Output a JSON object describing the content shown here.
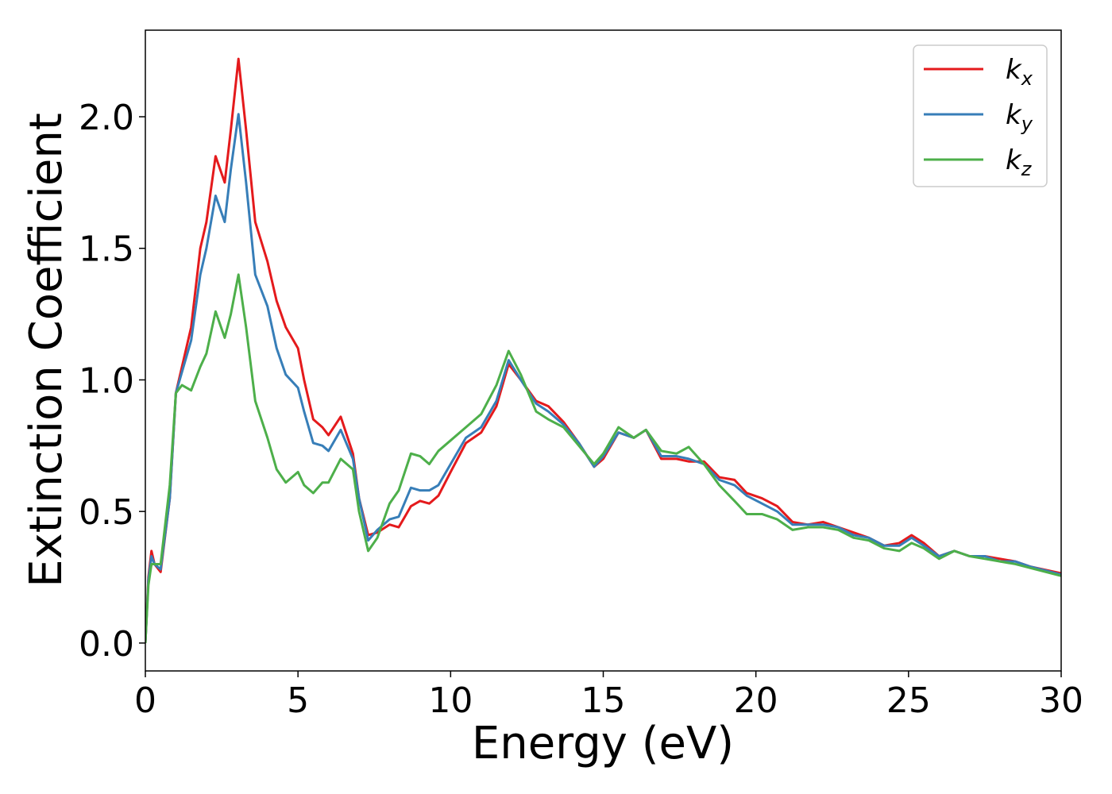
{
  "chart_data": {
    "type": "line",
    "xlabel": "Energy (eV)",
    "ylabel": "Extinction Coefficient",
    "x": [
      0,
      0.1,
      0.2,
      0.3,
      0.5,
      0.8,
      1.0,
      1.2,
      1.5,
      1.8,
      2.0,
      2.3,
      2.6,
      2.8,
      3.05,
      3.3,
      3.6,
      4.0,
      4.3,
      4.6,
      5.0,
      5.2,
      5.5,
      5.8,
      6.0,
      6.4,
      6.8,
      7.0,
      7.3,
      7.6,
      8.0,
      8.3,
      8.7,
      9.0,
      9.3,
      9.6,
      10.0,
      10.5,
      11.0,
      11.5,
      11.9,
      12.3,
      12.8,
      13.2,
      13.7,
      14.2,
      14.7,
      15.0,
      15.5,
      16.0,
      16.4,
      16.9,
      17.4,
      17.8,
      18.3,
      18.8,
      19.3,
      19.7,
      20.2,
      20.7,
      21.2,
      21.7,
      22.2,
      22.7,
      23.2,
      23.7,
      24.2,
      24.7,
      25.1,
      25.5,
      26.0,
      26.5,
      27.0,
      27.5,
      28.0,
      28.5,
      29.0,
      30.0
    ],
    "series": [
      {
        "name": "k_x",
        "color": "#e41a1c",
        "values": [
          0,
          0.25,
          0.35,
          0.3,
          0.27,
          0.55,
          0.95,
          1.05,
          1.2,
          1.5,
          1.6,
          1.85,
          1.75,
          1.95,
          2.22,
          1.95,
          1.6,
          1.45,
          1.3,
          1.2,
          1.12,
          1.0,
          0.85,
          0.82,
          0.79,
          0.86,
          0.72,
          0.55,
          0.41,
          0.42,
          0.45,
          0.44,
          0.52,
          0.54,
          0.53,
          0.56,
          0.65,
          0.76,
          0.8,
          0.9,
          1.06,
          1.0,
          0.92,
          0.9,
          0.84,
          0.76,
          0.67,
          0.7,
          0.8,
          0.78,
          0.81,
          0.7,
          0.7,
          0.69,
          0.69,
          0.63,
          0.62,
          0.57,
          0.55,
          0.52,
          0.46,
          0.45,
          0.46,
          0.44,
          0.42,
          0.4,
          0.37,
          0.38,
          0.41,
          0.38,
          0.33,
          0.35,
          0.33,
          0.33,
          0.32,
          0.31,
          0.29,
          0.265
        ]
      },
      {
        "name": "k_y",
        "color": "#377eb8",
        "values": [
          0,
          0.24,
          0.33,
          0.3,
          0.28,
          0.55,
          0.95,
          1.03,
          1.15,
          1.4,
          1.5,
          1.7,
          1.6,
          1.8,
          2.01,
          1.75,
          1.4,
          1.28,
          1.12,
          1.02,
          0.97,
          0.88,
          0.76,
          0.75,
          0.73,
          0.81,
          0.7,
          0.55,
          0.39,
          0.43,
          0.47,
          0.48,
          0.59,
          0.58,
          0.58,
          0.6,
          0.68,
          0.78,
          0.82,
          0.92,
          1.075,
          1.0,
          0.91,
          0.88,
          0.83,
          0.76,
          0.67,
          0.71,
          0.8,
          0.78,
          0.81,
          0.71,
          0.71,
          0.7,
          0.68,
          0.62,
          0.6,
          0.56,
          0.53,
          0.5,
          0.45,
          0.45,
          0.45,
          0.44,
          0.41,
          0.4,
          0.37,
          0.37,
          0.4,
          0.37,
          0.33,
          0.35,
          0.33,
          0.33,
          0.31,
          0.31,
          0.29,
          0.26
        ]
      },
      {
        "name": "k_z",
        "color": "#4daf4a",
        "values": [
          0,
          0.22,
          0.3,
          0.3,
          0.3,
          0.6,
          0.95,
          0.98,
          0.96,
          1.05,
          1.1,
          1.26,
          1.16,
          1.25,
          1.4,
          1.2,
          0.92,
          0.78,
          0.66,
          0.61,
          0.65,
          0.6,
          0.57,
          0.61,
          0.61,
          0.7,
          0.66,
          0.5,
          0.35,
          0.4,
          0.53,
          0.58,
          0.72,
          0.71,
          0.68,
          0.73,
          0.77,
          0.82,
          0.87,
          0.98,
          1.11,
          1.02,
          0.88,
          0.85,
          0.82,
          0.75,
          0.68,
          0.72,
          0.82,
          0.78,
          0.81,
          0.73,
          0.72,
          0.745,
          0.68,
          0.6,
          0.54,
          0.49,
          0.49,
          0.47,
          0.43,
          0.44,
          0.44,
          0.43,
          0.4,
          0.39,
          0.36,
          0.35,
          0.38,
          0.36,
          0.32,
          0.35,
          0.33,
          0.32,
          0.31,
          0.3,
          0.285,
          0.255
        ]
      }
    ],
    "xlim": [
      0,
      30
    ],
    "xticks": [
      0,
      5,
      10,
      15,
      20,
      25,
      30
    ],
    "ylim": [
      -0.106,
      2.329
    ],
    "yticks": [
      {
        "value": 0,
        "label": "0.0"
      },
      0.5,
      {
        "value": 1,
        "label": "1.0"
      },
      1.5,
      {
        "value": 2,
        "label": "2.0"
      }
    ],
    "grid": false,
    "legend": "upper right"
  }
}
